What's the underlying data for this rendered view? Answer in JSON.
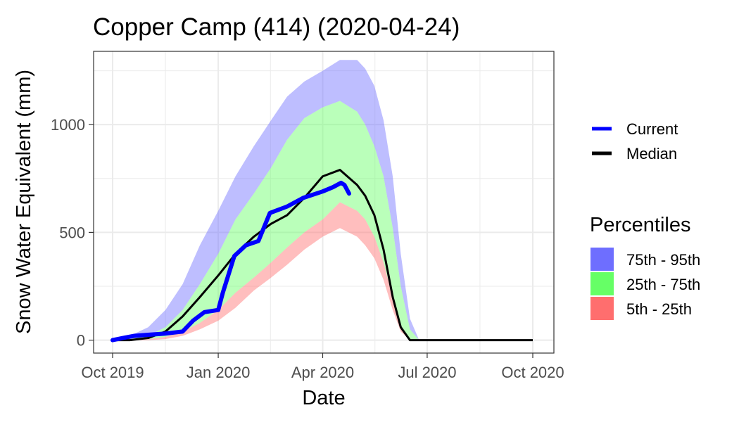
{
  "chart_data": {
    "type": "area",
    "title": "Copper Camp (414) (2020-04-24)",
    "xlabel": "Date",
    "ylabel": "Snow Water Equivalent (mm)",
    "xlim": [
      "2019-10-01",
      "2020-10-01"
    ],
    "ylim": [
      -60,
      1340
    ],
    "x_ticks": [
      "2019-10-01",
      "2020-01-01",
      "2020-04-01",
      "2020-07-01",
      "2020-10-01"
    ],
    "x_tick_labels": [
      "Oct 2019",
      "Jan 2020",
      "Apr 2020",
      "Jul 2020",
      "Oct 2020"
    ],
    "y_ticks": [
      0,
      500,
      1000
    ],
    "y_tick_labels": [
      "0",
      "500",
      "1000"
    ],
    "grid": true,
    "legend_position": "right",
    "colors": {
      "current": "#0000ff",
      "median": "#000000",
      "p75_95": "#6e6eff",
      "p25_75": "#66ff66",
      "p5_25": "#ff6e6e"
    },
    "legend_lines": [
      {
        "key": "current",
        "label": "Current"
      },
      {
        "key": "median",
        "label": "Median"
      }
    ],
    "percentiles_title": "Percentiles",
    "percentile_bands": [
      {
        "key": "p75_95",
        "label": "75th - 95th"
      },
      {
        "key": "p25_75",
        "label": "25th - 75th"
      },
      {
        "key": "p5_25",
        "label": "5th - 25th"
      }
    ],
    "x": [
      "2019-10-01",
      "2019-10-16",
      "2019-11-01",
      "2019-11-16",
      "2019-12-01",
      "2019-12-16",
      "2020-01-01",
      "2020-01-16",
      "2020-02-01",
      "2020-02-16",
      "2020-03-01",
      "2020-03-16",
      "2020-04-01",
      "2020-04-16",
      "2020-05-01",
      "2020-05-08",
      "2020-05-16",
      "2020-05-24",
      "2020-06-01",
      "2020-06-08",
      "2020-06-16",
      "2020-06-24",
      "2020-07-01",
      "2020-07-16",
      "2020-08-01",
      "2020-09-01",
      "2020-10-01"
    ],
    "series": [
      {
        "key": "p5",
        "values": [
          0,
          0,
          0,
          5,
          20,
          50,
          90,
          150,
          230,
          290,
          350,
          420,
          480,
          520,
          480,
          440,
          380,
          280,
          140,
          40,
          0,
          0,
          0,
          0,
          0,
          0,
          0
        ]
      },
      {
        "key": "p25",
        "values": [
          0,
          0,
          5,
          15,
          40,
          80,
          140,
          220,
          290,
          360,
          430,
          500,
          560,
          640,
          600,
          560,
          480,
          360,
          200,
          60,
          0,
          0,
          0,
          0,
          0,
          0,
          0
        ]
      },
      {
        "key": "p75",
        "values": [
          0,
          5,
          20,
          60,
          140,
          260,
          400,
          560,
          680,
          800,
          930,
          1030,
          1080,
          1110,
          1060,
          1000,
          900,
          760,
          520,
          250,
          50,
          0,
          0,
          0,
          0,
          0,
          0
        ]
      },
      {
        "key": "p95",
        "values": [
          0,
          20,
          60,
          140,
          260,
          440,
          600,
          760,
          900,
          1020,
          1130,
          1200,
          1250,
          1300,
          1300,
          1260,
          1180,
          1020,
          760,
          400,
          100,
          0,
          0,
          0,
          0,
          0,
          0
        ]
      },
      {
        "name": "Median",
        "key": "median",
        "values": [
          0,
          0,
          10,
          40,
          110,
          200,
          300,
          400,
          480,
          540,
          580,
          660,
          760,
          790,
          720,
          670,
          580,
          420,
          200,
          60,
          0,
          0,
          0,
          0,
          0,
          0,
          0
        ]
      }
    ],
    "current": {
      "name": "Current",
      "x": [
        "2019-10-01",
        "2019-10-10",
        "2019-10-20",
        "2019-11-01",
        "2019-11-15",
        "2019-12-01",
        "2019-12-10",
        "2019-12-20",
        "2020-01-01",
        "2020-01-05",
        "2020-01-15",
        "2020-01-25",
        "2020-02-05",
        "2020-02-15",
        "2020-03-01",
        "2020-03-15",
        "2020-04-01",
        "2020-04-10",
        "2020-04-17",
        "2020-04-20",
        "2020-04-24"
      ],
      "values": [
        0,
        10,
        20,
        25,
        30,
        40,
        90,
        130,
        140,
        220,
        390,
        440,
        460,
        590,
        620,
        660,
        690,
        710,
        730,
        720,
        680
      ]
    }
  }
}
